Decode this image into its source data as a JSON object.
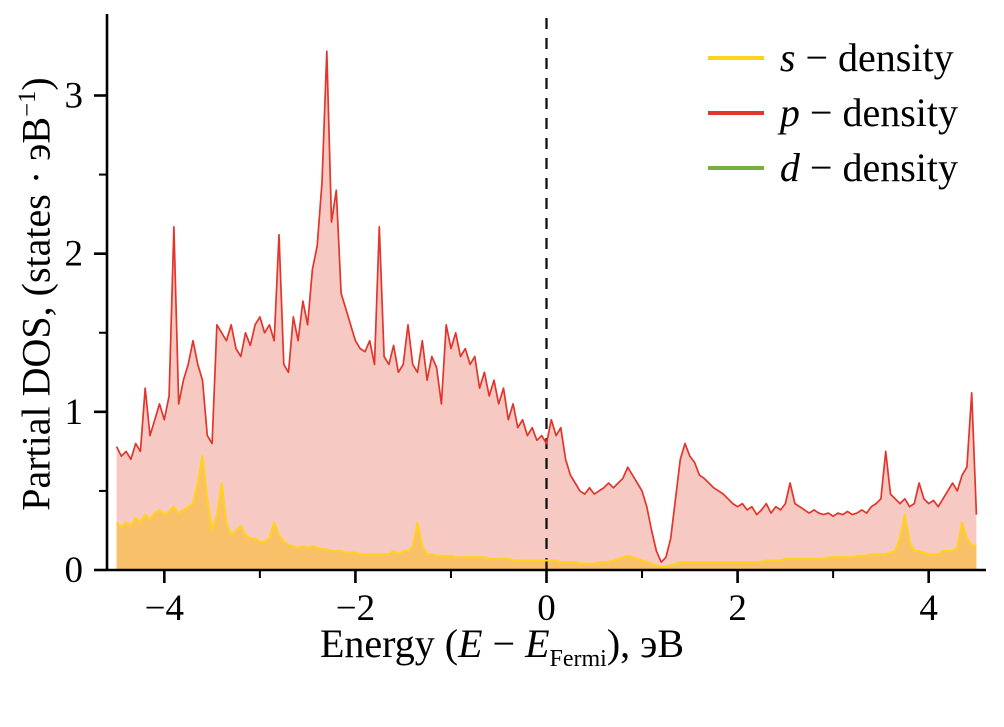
{
  "figure": {
    "background": "#ffffff"
  },
  "chart_data": {
    "type": "area",
    "title": "",
    "xlabel": "Energy (E − E_Fermi), эВ",
    "ylabel": "Partial DOS, (states · эВ−1)",
    "xlabel_parts": {
      "pre": "Energy (",
      "sym1": "E",
      "mid": " − ",
      "sym2": "E",
      "sub": "Fermi",
      "post": "), эВ"
    },
    "ylabel_parts": {
      "pre": "Partial DOS, (states · эВ",
      "sup": "−1",
      "post": ")"
    },
    "xlim": [
      -4.6,
      4.6
    ],
    "ylim": [
      0,
      3.49
    ],
    "x_ticks": [
      {
        "v": -4,
        "label": "−4"
      },
      {
        "v": -2,
        "label": "−2"
      },
      {
        "v": 0,
        "label": "0"
      },
      {
        "v": 2,
        "label": "2"
      },
      {
        "v": 4,
        "label": "4"
      }
    ],
    "x_minor_ticks": [
      -3,
      -1,
      1,
      3
    ],
    "y_ticks": [
      {
        "v": 0,
        "label": "0"
      },
      {
        "v": 1,
        "label": "1"
      },
      {
        "v": 2,
        "label": "2"
      },
      {
        "v": 3,
        "label": "3"
      }
    ],
    "y_minor_ticks": [
      0.5,
      1.5,
      2.5
    ],
    "fermi_line_x": 0,
    "fermi_line_color": "#111111",
    "axis_color": "#000000",
    "grid": false,
    "legend_position": "top-right",
    "x_start": -4.5,
    "x_step": 0.05,
    "n_points": 181,
    "series": [
      {
        "name": "s-density",
        "symbol": "s",
        "label_rest": " − density",
        "color": "#FFD21F",
        "fill": "#F9C06A",
        "values": [
          0.3,
          0.27,
          0.3,
          0.28,
          0.33,
          0.3,
          0.35,
          0.32,
          0.36,
          0.38,
          0.35,
          0.37,
          0.4,
          0.36,
          0.38,
          0.4,
          0.42,
          0.55,
          0.72,
          0.45,
          0.25,
          0.35,
          0.55,
          0.3,
          0.22,
          0.25,
          0.28,
          0.22,
          0.2,
          0.2,
          0.18,
          0.18,
          0.2,
          0.3,
          0.22,
          0.18,
          0.16,
          0.15,
          0.14,
          0.15,
          0.14,
          0.15,
          0.14,
          0.13,
          0.13,
          0.12,
          0.12,
          0.12,
          0.11,
          0.11,
          0.11,
          0.1,
          0.1,
          0.1,
          0.1,
          0.1,
          0.1,
          0.1,
          0.12,
          0.1,
          0.12,
          0.12,
          0.15,
          0.3,
          0.15,
          0.1,
          0.1,
          0.09,
          0.09,
          0.09,
          0.09,
          0.08,
          0.08,
          0.08,
          0.08,
          0.08,
          0.08,
          0.08,
          0.07,
          0.07,
          0.07,
          0.07,
          0.07,
          0.06,
          0.06,
          0.06,
          0.06,
          0.06,
          0.06,
          0.06,
          0.06,
          0.06,
          0.06,
          0.05,
          0.05,
          0.05,
          0.05,
          0.04,
          0.04,
          0.04,
          0.04,
          0.05,
          0.05,
          0.05,
          0.06,
          0.07,
          0.08,
          0.09,
          0.08,
          0.07,
          0.06,
          0.05,
          0.04,
          0.03,
          0.02,
          0.02,
          0.03,
          0.04,
          0.05,
          0.05,
          0.05,
          0.05,
          0.05,
          0.05,
          0.05,
          0.05,
          0.05,
          0.05,
          0.05,
          0.05,
          0.05,
          0.05,
          0.05,
          0.05,
          0.05,
          0.05,
          0.06,
          0.06,
          0.06,
          0.06,
          0.07,
          0.07,
          0.07,
          0.07,
          0.07,
          0.07,
          0.07,
          0.07,
          0.07,
          0.08,
          0.08,
          0.08,
          0.08,
          0.08,
          0.08,
          0.09,
          0.09,
          0.09,
          0.1,
          0.1,
          0.1,
          0.1,
          0.11,
          0.12,
          0.2,
          0.35,
          0.18,
          0.12,
          0.12,
          0.11,
          0.1,
          0.1,
          0.1,
          0.12,
          0.12,
          0.12,
          0.14,
          0.3,
          0.2,
          0.16,
          0.15
        ]
      },
      {
        "name": "p-density",
        "symbol": "p",
        "label_rest": " − density",
        "color": "#E2352B",
        "fill": "#F6C9C3",
        "values": [
          0.78,
          0.72,
          0.75,
          0.7,
          0.8,
          0.75,
          1.15,
          0.85,
          0.95,
          1.05,
          0.95,
          1.1,
          2.17,
          1.05,
          1.2,
          1.3,
          1.45,
          1.3,
          1.2,
          0.85,
          0.8,
          1.55,
          1.5,
          1.45,
          1.55,
          1.4,
          1.35,
          1.5,
          1.42,
          1.55,
          1.6,
          1.5,
          1.55,
          1.45,
          2.12,
          1.3,
          1.25,
          1.6,
          1.45,
          1.7,
          1.55,
          1.9,
          2.05,
          2.45,
          3.28,
          2.2,
          2.4,
          1.75,
          1.65,
          1.55,
          1.45,
          1.4,
          1.38,
          1.45,
          1.3,
          2.17,
          1.35,
          1.3,
          1.42,
          1.25,
          1.3,
          1.55,
          1.3,
          1.25,
          1.45,
          1.2,
          1.35,
          1.28,
          1.05,
          1.55,
          1.4,
          1.5,
          1.35,
          1.4,
          1.3,
          1.35,
          1.15,
          1.25,
          1.1,
          1.2,
          1.05,
          1.15,
          0.95,
          1.05,
          0.9,
          0.95,
          0.85,
          0.9,
          0.82,
          0.85,
          0.8,
          0.95,
          0.85,
          0.9,
          0.7,
          0.6,
          0.55,
          0.5,
          0.48,
          0.52,
          0.48,
          0.5,
          0.52,
          0.55,
          0.52,
          0.55,
          0.58,
          0.65,
          0.6,
          0.55,
          0.5,
          0.4,
          0.25,
          0.12,
          0.05,
          0.08,
          0.2,
          0.45,
          0.7,
          0.8,
          0.72,
          0.68,
          0.6,
          0.58,
          0.55,
          0.52,
          0.5,
          0.48,
          0.45,
          0.42,
          0.4,
          0.42,
          0.38,
          0.4,
          0.35,
          0.38,
          0.42,
          0.36,
          0.4,
          0.38,
          0.42,
          0.55,
          0.42,
          0.4,
          0.38,
          0.36,
          0.38,
          0.36,
          0.35,
          0.36,
          0.34,
          0.36,
          0.35,
          0.37,
          0.35,
          0.36,
          0.38,
          0.36,
          0.4,
          0.42,
          0.45,
          0.75,
          0.48,
          0.45,
          0.42,
          0.45,
          0.4,
          0.42,
          0.55,
          0.45,
          0.42,
          0.44,
          0.4,
          0.45,
          0.5,
          0.55,
          0.5,
          0.6,
          0.65,
          1.12,
          0.35
        ]
      },
      {
        "name": "d-density",
        "symbol": "d",
        "label_rest": " − density",
        "color": "#76B041",
        "fill": "none",
        "constant": 0
      }
    ]
  }
}
